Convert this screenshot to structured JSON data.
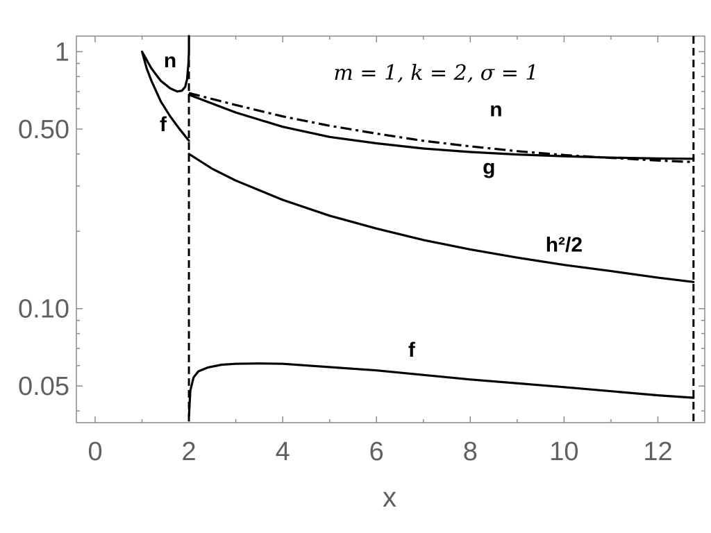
{
  "chart_data": {
    "type": "line",
    "title": "",
    "annotation": "m = 1, k = 2, σ = 1",
    "xlabel": "x",
    "ylabel": "",
    "xlim": [
      -0.4,
      13.0
    ],
    "ylim": [
      0.036,
      1.15
    ],
    "yscale": "log",
    "grid": false,
    "xticks": [
      0,
      2,
      4,
      6,
      8,
      10,
      12
    ],
    "xtick_labels": [
      "0",
      "2",
      "4",
      "6",
      "8",
      "10",
      "12"
    ],
    "yticks": [
      0.05,
      0.1,
      0.5,
      1
    ],
    "ytick_labels": [
      "0.05",
      "0.10",
      "0.50",
      "1"
    ],
    "vertical_lines": [
      2.0,
      12.76
    ],
    "series": [
      {
        "curve": "f-inner",
        "style": "solid",
        "x": [
          1.0,
          1.1,
          1.2,
          1.4,
          1.6,
          1.8,
          2.0
        ],
        "y": [
          1.0,
          0.86,
          0.77,
          0.64,
          0.56,
          0.5,
          0.45
        ]
      },
      {
        "curve": "n-inner",
        "style": "solid",
        "x": [
          1.0,
          1.2,
          1.4,
          1.6,
          1.75,
          1.85,
          1.92,
          1.96,
          1.99,
          2.0,
          2.0
        ],
        "y": [
          1.0,
          0.86,
          0.77,
          0.72,
          0.7,
          0.705,
          0.73,
          0.78,
          0.9,
          1.0,
          1.15
        ]
      },
      {
        "curve": "g",
        "style": "solid",
        "x": [
          2.0,
          3.0,
          4.0,
          5.0,
          6.0,
          7.0,
          8.0,
          9.0,
          10.0,
          11.0,
          12.0,
          12.76
        ],
        "y": [
          0.68,
          0.58,
          0.51,
          0.466,
          0.44,
          0.42,
          0.407,
          0.398,
          0.392,
          0.387,
          0.384,
          0.383
        ]
      },
      {
        "curve": "n-outer",
        "style": "dashdot",
        "x": [
          2.0,
          3.0,
          4.0,
          5.0,
          6.0,
          7.0,
          8.0,
          9.0,
          10.0,
          11.0,
          12.0,
          12.76
        ],
        "y": [
          0.69,
          0.62,
          0.56,
          0.515,
          0.48,
          0.45,
          0.428,
          0.41,
          0.396,
          0.386,
          0.377,
          0.372
        ]
      },
      {
        "curve": "h2/2",
        "style": "solid",
        "x": [
          2.0,
          2.5,
          3.0,
          4.0,
          5.0,
          6.0,
          7.0,
          8.0,
          9.0,
          10.0,
          11.0,
          12.0,
          12.76
        ],
        "y": [
          0.4,
          0.35,
          0.315,
          0.265,
          0.23,
          0.205,
          0.185,
          0.17,
          0.158,
          0.148,
          0.14,
          0.132,
          0.127
        ]
      },
      {
        "curve": "f-outer",
        "style": "solid",
        "x": [
          2.0,
          2.03,
          2.1,
          2.2,
          2.4,
          2.7,
          3.0,
          3.5,
          4.0,
          6.0,
          8.0,
          10.0,
          12.0,
          12.76
        ],
        "y": [
          0.038,
          0.048,
          0.054,
          0.057,
          0.059,
          0.0605,
          0.061,
          0.0612,
          0.061,
          0.0575,
          0.053,
          0.0495,
          0.046,
          0.045
        ]
      }
    ],
    "labels": [
      {
        "text": "n",
        "x": 1.6,
        "y": 0.87
      },
      {
        "text": "f",
        "x": 1.45,
        "y": 0.49
      },
      {
        "text": "n",
        "x": 8.55,
        "y": 0.56
      },
      {
        "text": "g",
        "x": 8.4,
        "y": 0.335
      },
      {
        "text": "h²/2",
        "x": 10.0,
        "y": 0.167
      },
      {
        "text": "f",
        "x": 6.75,
        "y": 0.065
      }
    ]
  }
}
